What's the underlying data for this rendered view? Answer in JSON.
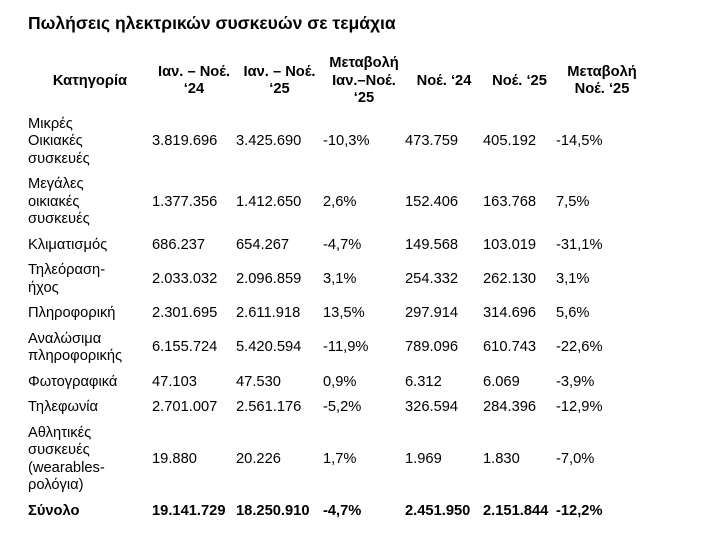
{
  "title": "Πωλήσεις ηλεκτρικών συσκευών σε τεμάχια",
  "table": {
    "headers": [
      "Κατηγορία",
      "Ιαν. – Νοέ.\n‘24",
      "Ιαν. – Νοέ.\n‘25",
      "Μεταβολή\nΙαν.–Νοέ.\n‘25",
      "Νοέ. ‘24",
      "Νοέ. ‘25",
      "Μεταβολή\nΝοέ. ‘25"
    ],
    "rows": [
      [
        "Μικρές\nΟικιακές\nσυσκευές",
        "3.819.696",
        "3.425.690",
        "-10,3%",
        "473.759",
        "405.192",
        "-14,5%"
      ],
      [
        "Μεγάλες\nοικιακές\nσυσκευές",
        "1.377.356",
        "1.412.650",
        "2,6%",
        "152.406",
        "163.768",
        "7,5%"
      ],
      [
        "Κλιματισμός",
        "686.237",
        "654.267",
        "-4,7%",
        "149.568",
        "103.019",
        "-31,1%"
      ],
      [
        "Τηλεόραση-\nήχος",
        "2.033.032",
        "2.096.859",
        "3,1%",
        "254.332",
        "262.130",
        "3,1%"
      ],
      [
        "Πληροφορική",
        "2.301.695",
        "2.611.918",
        "13,5%",
        "297.914",
        "314.696",
        "5,6%"
      ],
      [
        "Αναλώσιμα\nπληροφορικής",
        "6.155.724",
        "5.420.594",
        "-11,9%",
        "789.096",
        "610.743",
        "-22,6%"
      ],
      [
        "Φωτογραφικά",
        "47.103",
        "47.530",
        "0,9%",
        "6.312",
        "6.069",
        "-3,9%"
      ],
      [
        "Τηλεφωνία",
        "2.701.007",
        "2.561.176",
        "-5,2%",
        "326.594",
        "284.396",
        "-12,9%"
      ],
      [
        "Αθλητικές\nσυσκευές\n(wearables-\nρολόγια)",
        "19.880",
        "20.226",
        "1,7%",
        "1.969",
        "1.830",
        "-7,0%"
      ]
    ],
    "total_row": [
      "Σύνολο",
      "19.141.729",
      "18.250.910",
      "-4,7%",
      "2.451.950",
      "2.151.844",
      "-12,2%"
    ]
  }
}
